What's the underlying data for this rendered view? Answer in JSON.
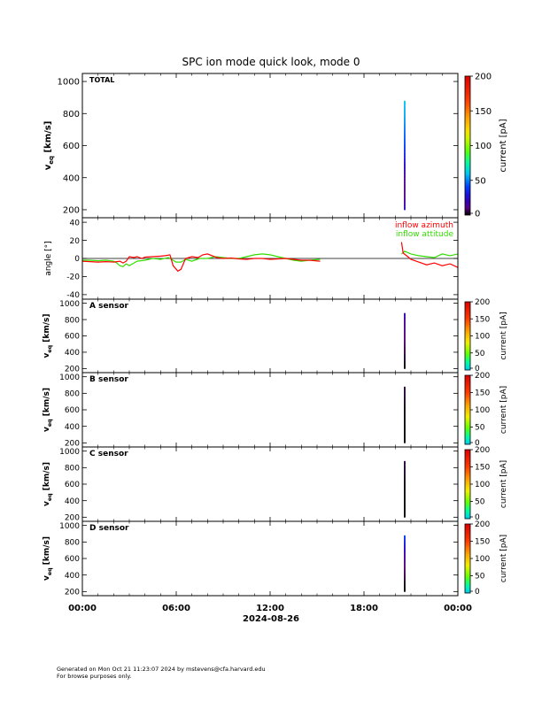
{
  "title": "SPC ion mode quick look, mode 0",
  "date_label": "2024-08-26",
  "footer": {
    "line1": "Generated on Mon Oct 21 11:23:07 2024 by mstevens@cfa.harvard.edu",
    "line2": "For browse purposes only."
  },
  "colors": {
    "azimuth": "#ff0000",
    "attitude": "#33dd00",
    "frame": "#000000"
  },
  "colorbar": {
    "label": "current [pA]",
    "ticks": [
      "0",
      "50",
      "100",
      "150",
      "200"
    ]
  },
  "chart_data": [
    {
      "type": "heatmap",
      "panel_label": "TOTAL",
      "ylabel_main": "v",
      "ylabel_sub": "eq",
      "ylabel_tail": " [km/s]",
      "ylim": [
        150,
        1050
      ],
      "yticks": [
        "200",
        "400",
        "600",
        "800",
        "1000"
      ],
      "xlim_hours": [
        0,
        24
      ],
      "xticks": [
        "00:00",
        "06:00",
        "12:00",
        "18:00",
        "00:00"
      ],
      "colorbar_range": [
        0,
        200
      ],
      "data_column_hours": [
        20.55,
        20.65
      ],
      "velocity_range": [
        200,
        880
      ],
      "intensity_profile": [
        {
          "v": 880,
          "pA": 60
        },
        {
          "v": 780,
          "pA": 55
        },
        {
          "v": 700,
          "pA": 48
        },
        {
          "v": 600,
          "pA": 40
        },
        {
          "v": 500,
          "pA": 28
        },
        {
          "v": 400,
          "pA": 15
        },
        {
          "v": 300,
          "pA": 10
        },
        {
          "v": 220,
          "pA": 20
        }
      ]
    },
    {
      "type": "line",
      "ylabel": "angle [°]",
      "ylim": [
        -45,
        45
      ],
      "yticks": [
        "-40",
        "-20",
        "0",
        "20",
        "40"
      ],
      "xlim_hours": [
        0,
        24
      ],
      "series": [
        {
          "name": "inflow azimuth",
          "points": [
            [
              0,
              -3
            ],
            [
              0.5,
              -3.5
            ],
            [
              1,
              -4
            ],
            [
              1.5,
              -3.5
            ],
            [
              2,
              -4
            ],
            [
              2.4,
              -3
            ],
            [
              2.6,
              -5
            ],
            [
              2.8,
              -3
            ],
            [
              3.0,
              2
            ],
            [
              3.3,
              1
            ],
            [
              3.5,
              2
            ],
            [
              3.8,
              0
            ],
            [
              4,
              1.5
            ],
            [
              4.5,
              2
            ],
            [
              5,
              2.5
            ],
            [
              5.3,
              3
            ],
            [
              5.6,
              4
            ],
            [
              5.8,
              -8
            ],
            [
              6.1,
              -14
            ],
            [
              6.3,
              -12
            ],
            [
              6.6,
              0
            ],
            [
              7,
              2
            ],
            [
              7.4,
              1
            ],
            [
              7.7,
              4
            ],
            [
              8,
              5
            ],
            [
              8.3,
              3
            ],
            [
              8.6,
              1
            ],
            [
              9,
              0
            ],
            [
              9.5,
              0.5
            ],
            [
              10,
              -0.5
            ],
            [
              10.5,
              -1
            ],
            [
              11,
              0
            ],
            [
              11.5,
              0
            ],
            [
              12,
              -1
            ],
            [
              12.5,
              -0.5
            ],
            [
              13,
              0
            ],
            [
              13.5,
              -1
            ],
            [
              14,
              -2
            ],
            [
              14.5,
              -2
            ],
            [
              15.2,
              -3
            ],
            [
              20.4,
              18
            ],
            [
              20.5,
              6
            ],
            [
              20.8,
              2
            ],
            [
              21,
              -1
            ],
            [
              21.5,
              -4
            ],
            [
              22,
              -7
            ],
            [
              22.5,
              -5
            ],
            [
              23,
              -8
            ],
            [
              23.5,
              -6
            ],
            [
              24,
              -10
            ]
          ]
        },
        {
          "name": "inflow attitude",
          "points": [
            [
              0,
              -2
            ],
            [
              0.5,
              -2
            ],
            [
              1,
              -2.5
            ],
            [
              1.5,
              -2
            ],
            [
              2,
              -3
            ],
            [
              2.2,
              -5
            ],
            [
              2.4,
              -8
            ],
            [
              2.6,
              -9
            ],
            [
              2.8,
              -6
            ],
            [
              3.0,
              -8
            ],
            [
              3.3,
              -5
            ],
            [
              3.5,
              -3
            ],
            [
              4,
              -2
            ],
            [
              4.5,
              0
            ],
            [
              5,
              -1
            ],
            [
              5.5,
              1
            ],
            [
              6,
              -4
            ],
            [
              6.3,
              -4
            ],
            [
              6.6,
              -1
            ],
            [
              7,
              -3
            ],
            [
              7.5,
              0
            ],
            [
              8,
              0
            ],
            [
              8.5,
              2
            ],
            [
              9,
              1
            ],
            [
              9.5,
              0
            ],
            [
              10,
              0
            ],
            [
              10.5,
              2
            ],
            [
              11,
              4
            ],
            [
              11.5,
              5
            ],
            [
              12,
              4
            ],
            [
              12.5,
              2
            ],
            [
              13,
              0
            ],
            [
              13.5,
              -2
            ],
            [
              14,
              -3
            ],
            [
              14.5,
              -2
            ],
            [
              15.2,
              -1
            ],
            [
              20.4,
              5
            ],
            [
              20.6,
              8
            ],
            [
              21,
              5
            ],
            [
              21.5,
              3
            ],
            [
              22,
              2
            ],
            [
              22.5,
              1
            ],
            [
              23,
              5
            ],
            [
              23.5,
              3
            ],
            [
              24,
              5
            ]
          ]
        }
      ]
    },
    {
      "type": "heatmap",
      "panel_label": "A sensor",
      "ylim": [
        150,
        1050
      ],
      "yticks": [
        "200",
        "400",
        "600",
        "800",
        "1000"
      ],
      "data_column_hours": [
        20.55,
        20.65
      ],
      "velocity_range": [
        200,
        880
      ],
      "intensity_profile": [
        {
          "v": 880,
          "pA": 20
        },
        {
          "v": 700,
          "pA": 12
        },
        {
          "v": 500,
          "pA": 6
        },
        {
          "v": 300,
          "pA": 2
        },
        {
          "v": 220,
          "pA": 0
        }
      ]
    },
    {
      "type": "heatmap",
      "panel_label": "B sensor",
      "ylim": [
        150,
        1050
      ],
      "yticks": [
        "200",
        "400",
        "600",
        "800",
        "1000"
      ],
      "data_column_hours": [
        20.55,
        20.65
      ],
      "velocity_range": [
        200,
        880
      ],
      "intensity_profile": [
        {
          "v": 880,
          "pA": 4
        },
        {
          "v": 600,
          "pA": 1
        },
        {
          "v": 220,
          "pA": 0
        }
      ]
    },
    {
      "type": "heatmap",
      "panel_label": "C sensor",
      "ylim": [
        150,
        1050
      ],
      "yticks": [
        "200",
        "400",
        "600",
        "800",
        "1000"
      ],
      "data_column_hours": [
        20.55,
        20.65
      ],
      "velocity_range": [
        200,
        880
      ],
      "intensity_profile": [
        {
          "v": 880,
          "pA": 4
        },
        {
          "v": 600,
          "pA": 1
        },
        {
          "v": 220,
          "pA": 0
        }
      ]
    },
    {
      "type": "heatmap",
      "panel_label": "D sensor",
      "ylim": [
        150,
        1050
      ],
      "yticks": [
        "200",
        "400",
        "600",
        "800",
        "1000"
      ],
      "data_column_hours": [
        20.55,
        20.65
      ],
      "velocity_range": [
        200,
        880
      ],
      "intensity_profile": [
        {
          "v": 880,
          "pA": 40
        },
        {
          "v": 780,
          "pA": 30
        },
        {
          "v": 650,
          "pA": 18
        },
        {
          "v": 500,
          "pA": 8
        },
        {
          "v": 350,
          "pA": 3
        },
        {
          "v": 220,
          "pA": 0
        }
      ]
    }
  ]
}
